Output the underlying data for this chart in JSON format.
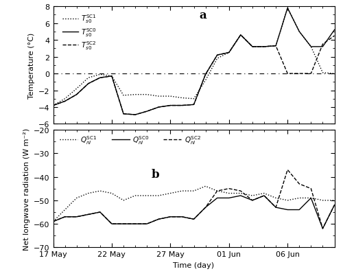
{
  "panel_a_label": "a",
  "panel_b_label": "b",
  "xlabel": "Time (day)",
  "ylabel_a": "Temperature (°C)",
  "ylabel_b": "Net longwave radiation (W m⁻²)",
  "ylim_a": [
    -6,
    8
  ],
  "ylim_b": [
    -70,
    -20
  ],
  "yticks_a": [
    -6,
    -4,
    -2,
    0,
    2,
    4,
    6,
    8
  ],
  "yticks_b": [
    -70,
    -60,
    -50,
    -40,
    -30,
    -20
  ],
  "xtick_labels": [
    "17 May",
    "22 May",
    "27 May",
    "01 Jun",
    "06 Jun"
  ],
  "xtick_positions": [
    0,
    5,
    10,
    15,
    20
  ],
  "n_days": 25,
  "SC0_temp": [
    -3.8,
    -3.3,
    -2.5,
    -1.2,
    -0.5,
    -0.3,
    -4.8,
    -4.9,
    -4.5,
    -4.0,
    -3.8,
    -3.8,
    -3.7,
    -0.1,
    2.2,
    2.5,
    4.6,
    3.2,
    3.2,
    3.3,
    7.8,
    5.0,
    3.2,
    3.2,
    5.2
  ],
  "SC1_temp": [
    -3.8,
    -3.0,
    -1.8,
    -0.5,
    -0.1,
    -0.3,
    -2.6,
    -2.5,
    -2.5,
    -2.7,
    -2.7,
    -2.9,
    -3.0,
    -0.8,
    1.8,
    2.5,
    4.6,
    3.2,
    3.2,
    3.3,
    7.8,
    5.0,
    3.2,
    0.1,
    0.0
  ],
  "SC2_temp": [
    -3.8,
    -3.3,
    -2.5,
    -1.2,
    -0.5,
    -0.3,
    -4.8,
    -4.9,
    -4.5,
    -4.0,
    -3.8,
    -3.8,
    -3.7,
    -0.1,
    2.2,
    2.5,
    4.6,
    3.2,
    3.2,
    3.3,
    0.0,
    0.0,
    0.0,
    3.5,
    4.5
  ],
  "SC0_lw": [
    -59,
    -57,
    -57,
    -56,
    -55,
    -60,
    -60,
    -60,
    -60,
    -58,
    -57,
    -57,
    -58,
    -53,
    -49,
    -49,
    -48,
    -50,
    -48,
    -53,
    -54,
    -54,
    -49,
    -62,
    -52
  ],
  "SC1_lw": [
    -59,
    -54,
    -49,
    -47,
    -46,
    -47,
    -50,
    -48,
    -48,
    -48,
    -47,
    -46,
    -46,
    -44,
    -46,
    -47,
    -47,
    -48,
    -47,
    -49,
    -50,
    -49,
    -49,
    -50,
    -50
  ],
  "SC2_lw": [
    -59,
    -57,
    -57,
    -56,
    -55,
    -60,
    -60,
    -60,
    -60,
    -58,
    -57,
    -57,
    -58,
    -53,
    -46,
    -45,
    -46,
    -50,
    -48,
    -53,
    -37,
    -43,
    -45,
    -62,
    -52
  ],
  "line_color": "black",
  "bg_color": "white"
}
